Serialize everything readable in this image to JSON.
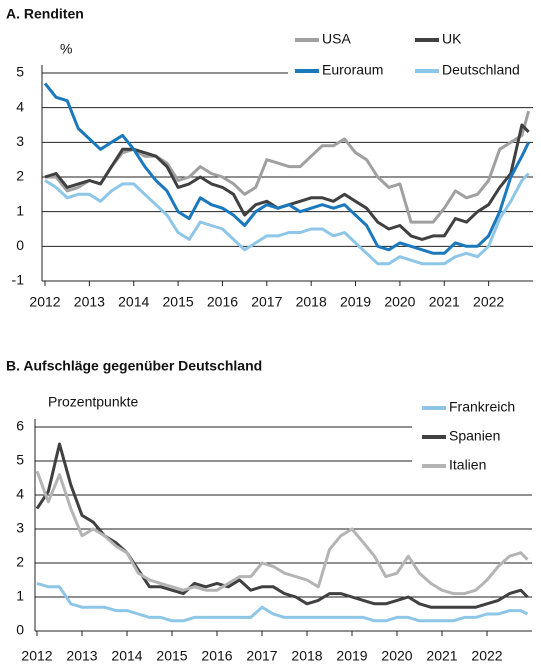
{
  "chart_data": [
    {
      "type": "line",
      "title": "A. Renditen",
      "y_label": "%",
      "x": [
        2012.0,
        2012.25,
        2012.5,
        2012.75,
        2013.0,
        2013.25,
        2013.5,
        2013.75,
        2014.0,
        2014.25,
        2014.5,
        2014.75,
        2015.0,
        2015.25,
        2015.5,
        2015.75,
        2016.0,
        2016.25,
        2016.5,
        2016.75,
        2017.0,
        2017.25,
        2017.5,
        2017.75,
        2018.0,
        2018.25,
        2018.5,
        2018.75,
        2019.0,
        2019.25,
        2019.5,
        2019.75,
        2020.0,
        2020.25,
        2020.5,
        2020.75,
        2021.0,
        2021.25,
        2021.5,
        2021.75,
        2022.0,
        2022.25,
        2022.5,
        2022.75,
        2022.9
      ],
      "series": [
        {
          "name": "USA",
          "color": "#a0a0a0",
          "values": [
            2.0,
            2.0,
            1.6,
            1.7,
            1.9,
            1.8,
            2.3,
            2.7,
            2.8,
            2.6,
            2.6,
            2.4,
            1.9,
            2.0,
            2.3,
            2.1,
            2.0,
            1.8,
            1.5,
            1.7,
            2.5,
            2.4,
            2.3,
            2.3,
            2.6,
            2.9,
            2.9,
            3.1,
            2.7,
            2.5,
            2.0,
            1.7,
            1.8,
            0.7,
            0.7,
            0.7,
            1.1,
            1.6,
            1.4,
            1.5,
            1.9,
            2.8,
            3.0,
            3.2,
            3.9
          ]
        },
        {
          "name": "UK",
          "color": "#404040",
          "values": [
            2.0,
            2.1,
            1.7,
            1.8,
            1.9,
            1.8,
            2.3,
            2.8,
            2.8,
            2.7,
            2.6,
            2.3,
            1.7,
            1.8,
            2.0,
            1.8,
            1.7,
            1.5,
            0.9,
            1.2,
            1.3,
            1.1,
            1.2,
            1.3,
            1.4,
            1.4,
            1.3,
            1.5,
            1.3,
            1.1,
            0.7,
            0.5,
            0.6,
            0.3,
            0.2,
            0.3,
            0.3,
            0.8,
            0.7,
            1.0,
            1.2,
            1.7,
            2.1,
            3.5,
            3.3
          ]
        },
        {
          "name": "Euroraum",
          "color": "#1a78bd",
          "values": [
            4.7,
            4.3,
            4.2,
            3.4,
            3.1,
            2.8,
            3.0,
            3.2,
            2.8,
            2.3,
            1.9,
            1.6,
            1.0,
            0.8,
            1.4,
            1.2,
            1.1,
            0.9,
            0.6,
            1.0,
            1.2,
            1.1,
            1.2,
            1.0,
            1.1,
            1.2,
            1.1,
            1.2,
            0.9,
            0.6,
            0.0,
            -0.1,
            0.1,
            0.0,
            -0.1,
            -0.2,
            -0.2,
            0.1,
            0.0,
            0.0,
            0.3,
            1.0,
            2.0,
            2.6,
            3.0
          ]
        },
        {
          "name": "Deutschland",
          "color": "#8ec6e8",
          "values": [
            1.9,
            1.7,
            1.4,
            1.5,
            1.5,
            1.3,
            1.6,
            1.8,
            1.8,
            1.5,
            1.2,
            0.9,
            0.4,
            0.2,
            0.7,
            0.6,
            0.5,
            0.2,
            -0.1,
            0.1,
            0.3,
            0.3,
            0.4,
            0.4,
            0.5,
            0.5,
            0.3,
            0.4,
            0.1,
            -0.2,
            -0.5,
            -0.5,
            -0.3,
            -0.4,
            -0.5,
            -0.5,
            -0.5,
            -0.3,
            -0.2,
            -0.3,
            0.0,
            0.8,
            1.3,
            1.9,
            2.1
          ]
        }
      ],
      "xlim": [
        2012,
        2023
      ],
      "xticks": [
        2012,
        2013,
        2014,
        2015,
        2016,
        2017,
        2018,
        2019,
        2020,
        2021,
        2022
      ],
      "ylim": [
        -1,
        5
      ],
      "yticks": [
        -1,
        0,
        1,
        2,
        3,
        4,
        5
      ],
      "grid": true,
      "legend": "top-right"
    },
    {
      "type": "line",
      "title": "B. Aufschläge gegenüber Deutschland",
      "y_label": "Prozentpunkte",
      "x": [
        2012.0,
        2012.25,
        2012.5,
        2012.75,
        2013.0,
        2013.25,
        2013.5,
        2013.75,
        2014.0,
        2014.25,
        2014.5,
        2014.75,
        2015.0,
        2015.25,
        2015.5,
        2015.75,
        2016.0,
        2016.25,
        2016.5,
        2016.75,
        2017.0,
        2017.25,
        2017.5,
        2017.75,
        2018.0,
        2018.25,
        2018.5,
        2018.75,
        2019.0,
        2019.25,
        2019.5,
        2019.75,
        2020.0,
        2020.25,
        2020.5,
        2020.75,
        2021.0,
        2021.25,
        2021.5,
        2021.75,
        2022.0,
        2022.25,
        2022.5,
        2022.75,
        2022.9
      ],
      "series": [
        {
          "name": "Frankreich",
          "color": "#8ec6e8",
          "values": [
            1.4,
            1.3,
            1.3,
            0.8,
            0.7,
            0.7,
            0.7,
            0.6,
            0.6,
            0.5,
            0.4,
            0.4,
            0.3,
            0.3,
            0.4,
            0.4,
            0.4,
            0.4,
            0.4,
            0.4,
            0.7,
            0.5,
            0.4,
            0.4,
            0.4,
            0.4,
            0.4,
            0.4,
            0.4,
            0.4,
            0.3,
            0.3,
            0.4,
            0.4,
            0.3,
            0.3,
            0.3,
            0.3,
            0.4,
            0.4,
            0.5,
            0.5,
            0.6,
            0.6,
            0.5
          ]
        },
        {
          "name": "Spanien",
          "color": "#404040",
          "values": [
            3.6,
            4.1,
            5.5,
            4.3,
            3.4,
            3.2,
            2.8,
            2.6,
            2.3,
            1.8,
            1.3,
            1.3,
            1.2,
            1.1,
            1.4,
            1.3,
            1.4,
            1.3,
            1.5,
            1.2,
            1.3,
            1.3,
            1.1,
            1.0,
            0.8,
            0.9,
            1.1,
            1.1,
            1.0,
            0.9,
            0.8,
            0.8,
            0.9,
            1.0,
            0.8,
            0.7,
            0.7,
            0.7,
            0.7,
            0.7,
            0.8,
            0.9,
            1.1,
            1.2,
            1.0
          ]
        },
        {
          "name": "Italien",
          "color": "#b4b4b4",
          "values": [
            4.7,
            3.8,
            4.6,
            3.6,
            2.8,
            3.0,
            2.8,
            2.5,
            2.3,
            1.7,
            1.5,
            1.4,
            1.3,
            1.2,
            1.3,
            1.2,
            1.2,
            1.4,
            1.6,
            1.6,
            2.0,
            1.9,
            1.7,
            1.6,
            1.5,
            1.3,
            2.4,
            2.8,
            3.0,
            2.6,
            2.2,
            1.6,
            1.7,
            2.2,
            1.7,
            1.4,
            1.2,
            1.1,
            1.1,
            1.2,
            1.5,
            1.9,
            2.2,
            2.3,
            2.1
          ]
        }
      ],
      "xlim": [
        2012,
        2023
      ],
      "xticks": [
        2012,
        2013,
        2014,
        2015,
        2016,
        2017,
        2018,
        2019,
        2020,
        2021,
        2022
      ],
      "ylim": [
        0,
        6
      ],
      "yticks": [
        0,
        1,
        2,
        3,
        4,
        5,
        6
      ],
      "grid": true,
      "legend": "right"
    }
  ]
}
